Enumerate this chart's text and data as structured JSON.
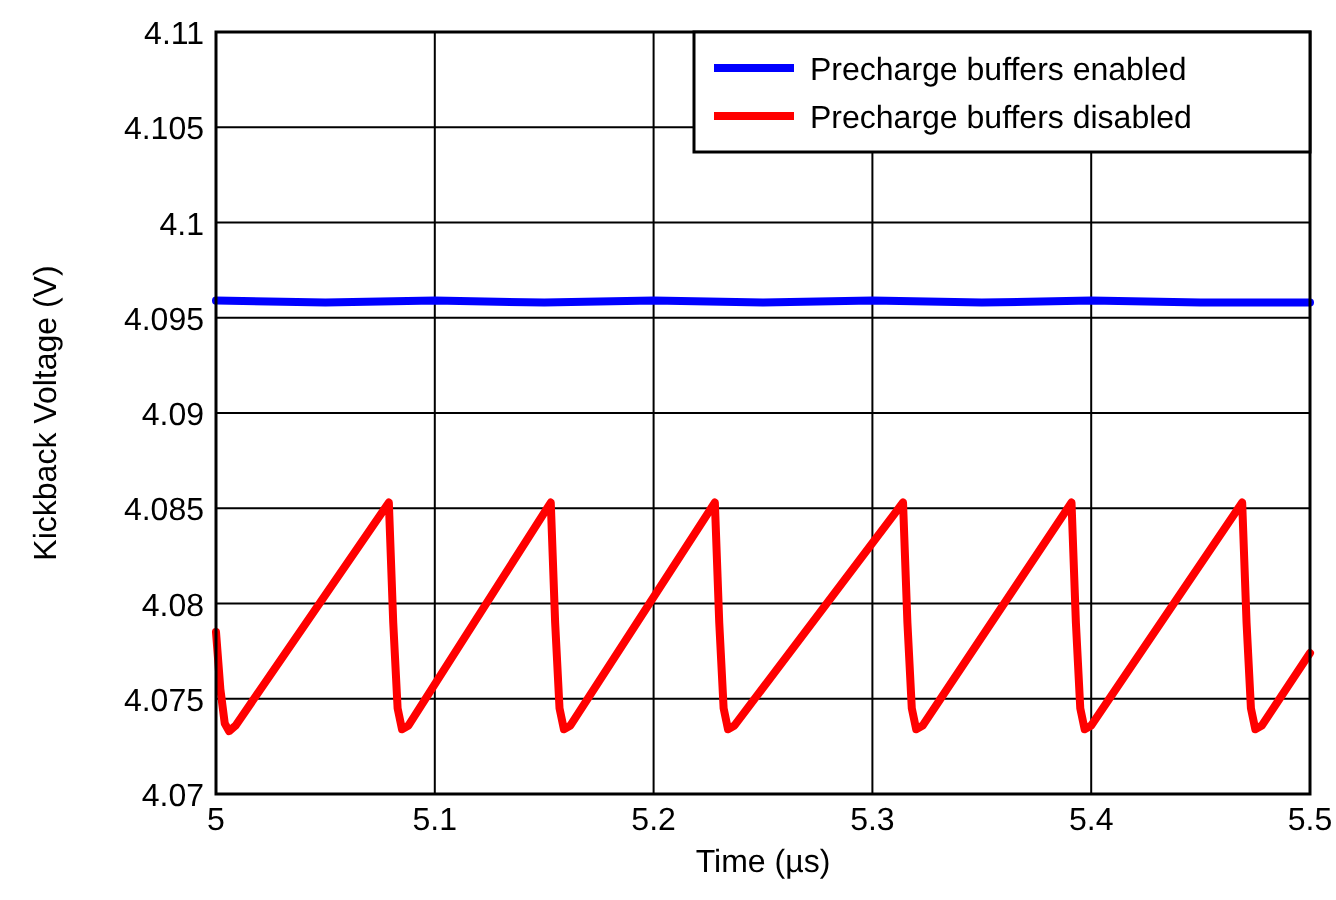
{
  "chart_data": {
    "type": "line",
    "xlabel": "Time (µs)",
    "ylabel": "Kickback Voltage (V)",
    "xlim": [
      5,
      5.5
    ],
    "xticks": [
      5,
      5.1,
      5.2,
      5.3,
      5.4,
      5.5
    ],
    "ylim": [
      4.07,
      4.11
    ],
    "yticks": [
      4.07,
      4.075,
      4.08,
      4.085,
      4.09,
      4.095,
      4.1,
      4.105,
      4.11
    ],
    "grid": true,
    "legend": "top right",
    "line_style": "solid",
    "marker": "none",
    "series": [
      {
        "name": "Precharge buffers enabled",
        "color": "#0000ff",
        "x": [
          5,
          5.05,
          5.1,
          5.15,
          5.2,
          5.25,
          5.3,
          5.35,
          5.4,
          5.45,
          5.5
        ],
        "values": [
          4.0959,
          4.0958,
          4.0959,
          4.0958,
          4.0959,
          4.0958,
          4.0959,
          4.0958,
          4.0959,
          4.0958,
          4.0958
        ]
      },
      {
        "name": "Precharge buffers disabled",
        "color": "#ff0000",
        "x": [
          5,
          5.002,
          5.004,
          5.006,
          5.009,
          5.079,
          5.081,
          5.083,
          5.085,
          5.088,
          5.153,
          5.155,
          5.157,
          5.159,
          5.162,
          5.228,
          5.23,
          5.232,
          5.234,
          5.237,
          5.314,
          5.316,
          5.318,
          5.32,
          5.323,
          5.391,
          5.393,
          5.395,
          5.397,
          5.4,
          5.469,
          5.471,
          5.473,
          5.475,
          5.478,
          5.5
        ],
        "values": [
          4.0785,
          4.0755,
          4.0737,
          4.0733,
          4.0736,
          4.0853,
          4.079,
          4.0745,
          4.0734,
          4.0736,
          4.0853,
          4.079,
          4.0745,
          4.0734,
          4.0736,
          4.0853,
          4.079,
          4.0745,
          4.0734,
          4.0736,
          4.0853,
          4.079,
          4.0745,
          4.0734,
          4.0736,
          4.0853,
          4.079,
          4.0745,
          4.0734,
          4.0736,
          4.0853,
          4.079,
          4.0745,
          4.0734,
          4.0736,
          4.0774
        ]
      }
    ]
  }
}
